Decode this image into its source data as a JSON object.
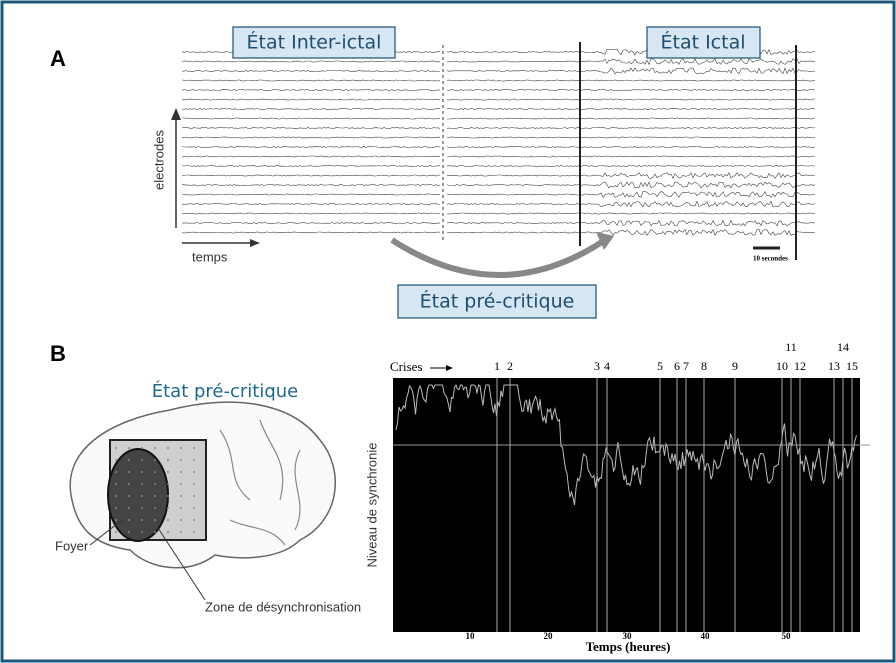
{
  "panel_a": {
    "label": "A",
    "inter_ictal": "État Inter-ictal",
    "ictal": "État Ictal",
    "y_axis": "electrodes",
    "x_axis": "temps",
    "scale": "10 secondes",
    "pre_critique": "État pré-critique"
  },
  "panel_b": {
    "label": "B",
    "title": "État pré-critique",
    "foyer": "Foyer",
    "zone": "Zone de désynchronisation",
    "crises_label": "Crises",
    "crises": [
      1,
      2,
      3,
      4,
      5,
      6,
      7,
      8,
      9,
      10,
      11,
      12,
      13,
      14,
      15
    ],
    "y_axis": "Niveau de synchronie",
    "x_ticks": [
      10,
      20,
      30,
      40,
      50
    ],
    "x_axis": "Temps (heures)"
  }
}
